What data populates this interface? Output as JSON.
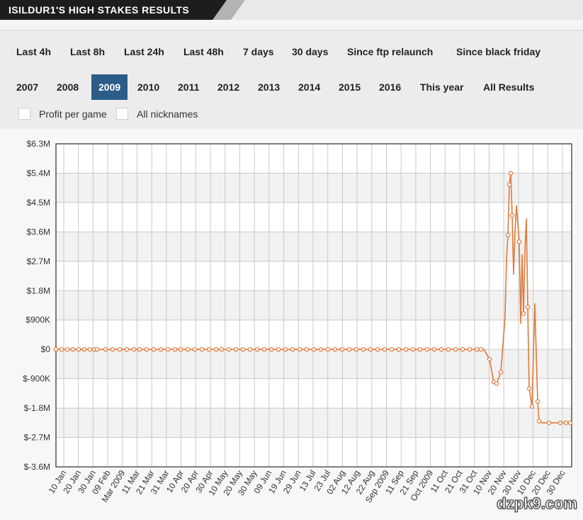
{
  "header": {
    "title": "ISILDUR1'S HIGH STAKES RESULTS"
  },
  "filters": {
    "row1": [
      "Last 4h",
      "Last 8h",
      "Last 24h",
      "Last 48h",
      "7 days",
      "30 days",
      "Since ftp relaunch",
      "Since black friday"
    ],
    "row2": [
      "2007",
      "2008",
      "2009",
      "2010",
      "2011",
      "2012",
      "2013",
      "2014",
      "2015",
      "2016",
      "This year",
      "All Results"
    ],
    "active_year": "2009",
    "active_color": "#2c5d89"
  },
  "options": {
    "profit_per_game": "Profit per game",
    "all_nicknames": "All nicknames"
  },
  "watermark": "dzpk9.com",
  "chart_data": {
    "type": "line",
    "title": "",
    "xlabel": "",
    "ylabel": "",
    "ylim": [
      -3600000,
      6300000
    ],
    "y_ticks": [
      6300000,
      5400000,
      4500000,
      3600000,
      2700000,
      1800000,
      900000,
      0,
      -900000,
      -1800000,
      -2700000,
      -3600000
    ],
    "y_tick_labels": [
      "$6.3M",
      "$5.4M",
      "$4.5M",
      "$3.6M",
      "$2.7M",
      "$1.8M",
      "$900K",
      "$0",
      "$-900K",
      "$-1.8M",
      "$-2.7M",
      "$-3.6M"
    ],
    "x_tick_labels": [
      "10 Jan",
      "20 Jan",
      "30 Jan",
      "09 Feb",
      "Mar 2009",
      "11 Mar",
      "21 Mar",
      "31 Mar",
      "10 Apr",
      "20 Apr",
      "30 Apr",
      "10 May",
      "20 May",
      "30 May",
      "09 Jun",
      "19 Jun",
      "29 Jun",
      "13 Jul",
      "23 Jul",
      "02 Aug",
      "12 Aug",
      "22 Aug",
      "Sep 2009",
      "11 Sep",
      "21 Sep",
      "Oct 2009",
      "11 Oct",
      "21 Oct",
      "31 Oct",
      "10 Nov",
      "20 Nov",
      "30 Nov",
      "10 Dec",
      "20 Dec",
      "30 Dec"
    ],
    "x_range": [
      "2009-01-01",
      "2009-12-31"
    ],
    "grid": true,
    "line_color": "#e07a3a",
    "series": [
      {
        "x": [
          "2009-01-01",
          "2009-01-05",
          "2009-01-09",
          "2009-01-13",
          "2009-01-17",
          "2009-01-21",
          "2009-01-25",
          "2009-01-28",
          "2009-01-30",
          "2009-02-05",
          "2009-02-10",
          "2009-02-15",
          "2009-02-20",
          "2009-02-25",
          "2009-03-01",
          "2009-03-06",
          "2009-03-11",
          "2009-03-16",
          "2009-03-21",
          "2009-03-26",
          "2009-03-30",
          "2009-04-04",
          "2009-04-09",
          "2009-04-14",
          "2009-04-19",
          "2009-04-24",
          "2009-04-28",
          "2009-05-03",
          "2009-05-08",
          "2009-05-13",
          "2009-05-18",
          "2009-05-23",
          "2009-05-28",
          "2009-06-02",
          "2009-06-07",
          "2009-06-12",
          "2009-06-17",
          "2009-06-22",
          "2009-06-27",
          "2009-07-02",
          "2009-07-07",
          "2009-07-12",
          "2009-07-17",
          "2009-07-22",
          "2009-07-27",
          "2009-08-01",
          "2009-08-06",
          "2009-08-11",
          "2009-08-16",
          "2009-08-21",
          "2009-08-26",
          "2009-08-31",
          "2009-09-05",
          "2009-09-10",
          "2009-09-15",
          "2009-09-20",
          "2009-09-25",
          "2009-09-30",
          "2009-10-05",
          "2009-10-10",
          "2009-10-15",
          "2009-10-20",
          "2009-10-25",
          "2009-10-28",
          "2009-10-29",
          "2009-10-30",
          "2009-11-03",
          "2009-11-06",
          "2009-11-08",
          "2009-11-11",
          "2009-11-14",
          "2009-11-15",
          "2009-11-16",
          "2009-11-17",
          "2009-11-18",
          "2009-11-19",
          "2009-11-20",
          "2009-11-21",
          "2009-11-22",
          "2009-11-24",
          "2009-11-25",
          "2009-11-26",
          "2009-11-27",
          "2009-11-28",
          "2009-11-29",
          "2009-11-30",
          "2009-12-01",
          "2009-12-03",
          "2009-12-05",
          "2009-12-07",
          "2009-12-08",
          "2009-12-10",
          "2009-12-12",
          "2009-12-15",
          "2009-12-19",
          "2009-12-23",
          "2009-12-27",
          "2009-12-30"
        ],
        "y": [
          0,
          0,
          0,
          0,
          0,
          0,
          0,
          0,
          0,
          0,
          0,
          0,
          0,
          0,
          0,
          0,
          0,
          0,
          0,
          0,
          0,
          0,
          0,
          0,
          0,
          0,
          0,
          0,
          0,
          0,
          0,
          0,
          0,
          0,
          0,
          0,
          0,
          0,
          0,
          0,
          0,
          0,
          0,
          0,
          0,
          0,
          0,
          0,
          0,
          0,
          0,
          0,
          0,
          0,
          0,
          0,
          0,
          0,
          0,
          0,
          0,
          0,
          0,
          0,
          0,
          0,
          -300000,
          -1000000,
          -1050000,
          -700000,
          1000000,
          2750000,
          3500000,
          5050000,
          5400000,
          4100000,
          2300000,
          3600000,
          4400000,
          3300000,
          800000,
          2900000,
          1100000,
          3000000,
          4000000,
          1300000,
          -1200000,
          -1750000,
          1400000,
          -1600000,
          -2200000,
          -2250000,
          -2250000,
          -2250000,
          -2250000,
          -2250000,
          -2250000,
          -2250000
        ],
        "markers": [
          0,
          1,
          2,
          3,
          4,
          5,
          6,
          7,
          8,
          9,
          10,
          11,
          12,
          13,
          14,
          15,
          16,
          17,
          18,
          19,
          20,
          21,
          22,
          23,
          24,
          25,
          26,
          27,
          28,
          29,
          30,
          31,
          32,
          33,
          34,
          35,
          36,
          37,
          38,
          39,
          40,
          41,
          42,
          43,
          44,
          45,
          46,
          47,
          48,
          49,
          50,
          51,
          52,
          53,
          54,
          55,
          56,
          57,
          58,
          59,
          60,
          61,
          62,
          63,
          66,
          67,
          68,
          69,
          72,
          73,
          74,
          75,
          79,
          82,
          85,
          86,
          87,
          89,
          90,
          93,
          95,
          96,
          97
        ]
      }
    ]
  }
}
